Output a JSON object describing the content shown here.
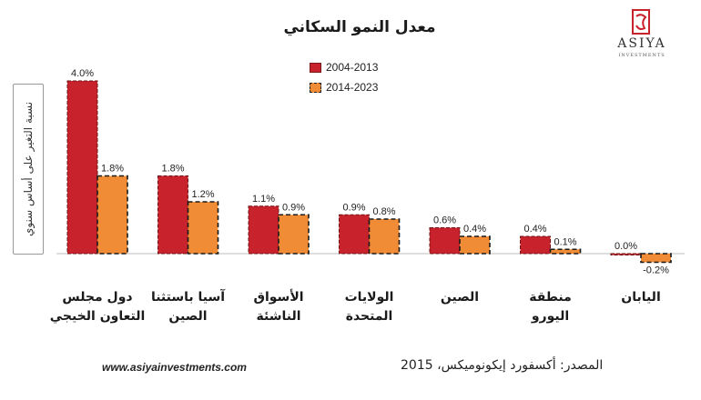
{
  "title": "معدل النمو السكاني",
  "logo": {
    "name": "ASIYA",
    "subtitle": "INVESTMENTS",
    "icon": "asiya-logo-icon",
    "color": "#c8232c"
  },
  "footer": {
    "url": "www.asiyainvestments.com",
    "source": "المصدر: أكسفورد إيكونوميكس، 2015"
  },
  "colors": {
    "series_2004_2013": "#c8232c",
    "series_2014_2023": "#f08c36"
  },
  "chart_data": {
    "type": "bar",
    "title": "معدل النمو السكاني",
    "ylabel": "نسبة التغير على أساس سنوي",
    "xlabel": "",
    "categories": [
      [
        "دول مجلس",
        "التعاون الخيجي"
      ],
      [
        "آسيا باستثنا",
        "الصين"
      ],
      [
        "الأسواق",
        "الناشئة"
      ],
      [
        "الولايات",
        "المتحدة"
      ],
      [
        "الصين"
      ],
      [
        "منطقة",
        "اليورو"
      ],
      [
        "اليابان"
      ]
    ],
    "series": [
      {
        "name": "2004-2013",
        "values": [
          4.0,
          1.8,
          1.1,
          0.9,
          0.6,
          0.4,
          0.0
        ],
        "labels": [
          "4.0%",
          "1.8%",
          "1.1%",
          "0.9%",
          "0.6%",
          "0.4%",
          "0.0%"
        ]
      },
      {
        "name": "2014-2023",
        "values": [
          1.8,
          1.2,
          0.9,
          0.8,
          0.4,
          0.1,
          -0.2
        ],
        "labels": [
          "1.8%",
          "1.2%",
          "0.9%",
          "0.8%",
          "0.4%",
          "0.1%",
          "-0.2%"
        ]
      }
    ],
    "ylim": [
      -0.3,
      4.3
    ],
    "grid": false,
    "legend": "top-center"
  }
}
